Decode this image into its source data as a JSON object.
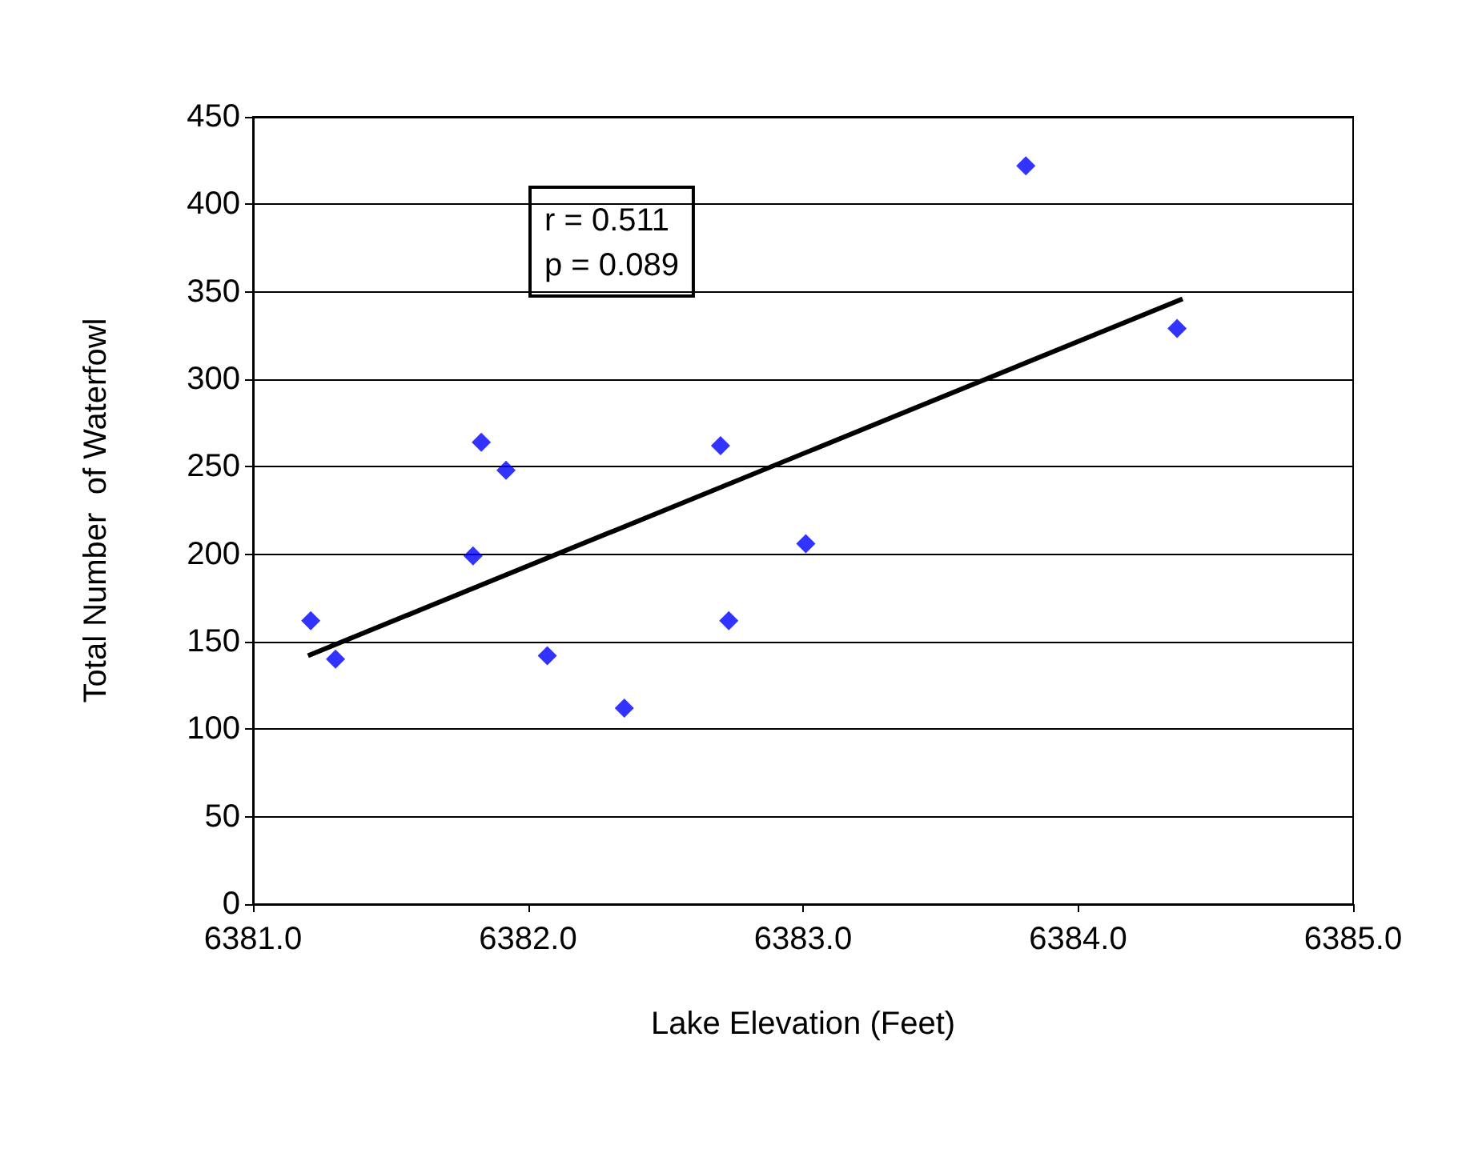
{
  "chart_data": {
    "type": "scatter",
    "xlabel": "Lake Elevation (Feet)",
    "ylabel": "Total Number  of Waterfowl",
    "annotations": [
      "r = 0.511\np = 0.089"
    ],
    "xlim": [
      6381.0,
      6385.0
    ],
    "xticks": [
      {
        "value": 6381,
        "label": "6381.0"
      },
      {
        "value": 6382,
        "label": "6382.0"
      },
      {
        "value": 6383,
        "label": "6383.0"
      },
      {
        "value": 6384,
        "label": "6384.0"
      },
      {
        "value": 6385,
        "label": "6385.0"
      }
    ],
    "ylim": [
      0,
      450
    ],
    "yticks": [
      0,
      50,
      100,
      150,
      200,
      250,
      300,
      350,
      400,
      450
    ],
    "grid": "y",
    "series": [
      {
        "color": "#0000ff",
        "marker": "diamond",
        "x": [
          6381.21,
          6381.3,
          6381.8,
          6381.83,
          6381.92,
          6382.07,
          6382.35,
          6382.7,
          6382.73,
          6383.01,
          6383.81,
          6384.36
        ],
        "values": [
          162,
          140,
          199,
          264,
          248,
          142,
          112,
          262,
          162,
          206,
          422,
          329
        ]
      },
      {
        "type": "line",
        "color": "#000000",
        "marker": "none",
        "line_style": "solid",
        "x": [
          6381.2,
          6384.38
        ],
        "values": [
          142,
          346
        ]
      }
    ]
  }
}
